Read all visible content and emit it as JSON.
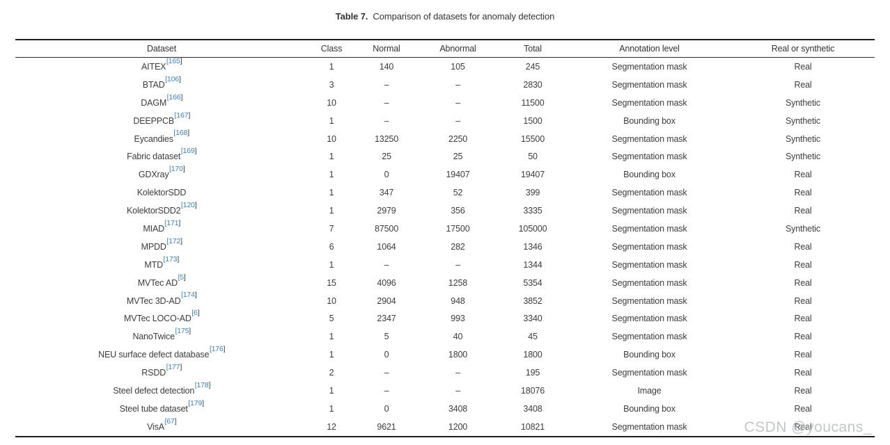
{
  "title": {
    "label": "Table 7.",
    "caption": "Comparison of datasets for anomaly detection"
  },
  "table": {
    "columns": [
      "Dataset",
      "Class",
      "Normal",
      "Abnormal",
      "Total",
      "Annotation level",
      "Real or synthetic"
    ],
    "rows": [
      {
        "dataset": "AITEX",
        "citation": "165",
        "class": "1",
        "normal": "140",
        "abnormal": "105",
        "total": "245",
        "annotation": "Segmentation mask",
        "real": "Real"
      },
      {
        "dataset": "BTAD",
        "citation": "106",
        "class": "3",
        "normal": "–",
        "abnormal": "–",
        "total": "2830",
        "annotation": "Segmentation mask",
        "real": "Real"
      },
      {
        "dataset": "DAGM",
        "citation": "166",
        "class": "10",
        "normal": "–",
        "abnormal": "–",
        "total": "11500",
        "annotation": "Segmentation mask",
        "real": "Synthetic"
      },
      {
        "dataset": "DEEPPCB",
        "citation": "167",
        "class": "1",
        "normal": "–",
        "abnormal": "–",
        "total": "1500",
        "annotation": "Bounding box",
        "real": "Synthetic"
      },
      {
        "dataset": "Eycandies",
        "citation": "168",
        "class": "10",
        "normal": "13250",
        "abnormal": "2250",
        "total": "15500",
        "annotation": "Segmentation mask",
        "real": "Synthetic"
      },
      {
        "dataset": "Fabric dataset",
        "citation": "169",
        "class": "1",
        "normal": "25",
        "abnormal": "25",
        "total": "50",
        "annotation": "Segmentation mask",
        "real": "Synthetic"
      },
      {
        "dataset": "GDXray",
        "citation": "170",
        "class": "1",
        "normal": "0",
        "abnormal": "19407",
        "total": "19407",
        "annotation": "Bounding box",
        "real": "Real"
      },
      {
        "dataset": "KolektorSDD",
        "citation": null,
        "class": "1",
        "normal": "347",
        "abnormal": "52",
        "total": "399",
        "annotation": "Segmentation mask",
        "real": "Real"
      },
      {
        "dataset": "KolektorSDD2",
        "citation": "120",
        "class": "1",
        "normal": "2979",
        "abnormal": "356",
        "total": "3335",
        "annotation": "Segmentation mask",
        "real": "Real"
      },
      {
        "dataset": "MIAD",
        "citation": "171",
        "class": "7",
        "normal": "87500",
        "abnormal": "17500",
        "total": "105000",
        "annotation": "Segmentation mask",
        "real": "Synthetic"
      },
      {
        "dataset": "MPDD",
        "citation": "172",
        "class": "6",
        "normal": "1064",
        "abnormal": "282",
        "total": "1346",
        "annotation": "Segmentation mask",
        "real": "Real"
      },
      {
        "dataset": "MTD",
        "citation": "173",
        "class": "1",
        "normal": "–",
        "abnormal": "–",
        "total": "1344",
        "annotation": "Segmentation mask",
        "real": "Real"
      },
      {
        "dataset": "MVTec AD",
        "citation": "5",
        "class": "15",
        "normal": "4096",
        "abnormal": "1258",
        "total": "5354",
        "annotation": "Segmentation mask",
        "real": "Real"
      },
      {
        "dataset": "MVTec 3D-AD",
        "citation": "174",
        "class": "10",
        "normal": "2904",
        "abnormal": "948",
        "total": "3852",
        "annotation": "Segmentation mask",
        "real": "Real"
      },
      {
        "dataset": "MVTec LOCO-AD",
        "citation": "6",
        "class": "5",
        "normal": "2347",
        "abnormal": "993",
        "total": "3340",
        "annotation": "Segmentation mask",
        "real": "Real"
      },
      {
        "dataset": "NanoTwice",
        "citation": "175",
        "class": "1",
        "normal": "5",
        "abnormal": "40",
        "total": "45",
        "annotation": "Segmentation mask",
        "real": "Real"
      },
      {
        "dataset": "NEU surface defect database",
        "citation": "176",
        "class": "1",
        "normal": "0",
        "abnormal": "1800",
        "total": "1800",
        "annotation": "Bounding box",
        "real": "Real"
      },
      {
        "dataset": "RSDD",
        "citation": "177",
        "class": "2",
        "normal": "–",
        "abnormal": "–",
        "total": "195",
        "annotation": "Segmentation mask",
        "real": "Real"
      },
      {
        "dataset": "Steel defect detection",
        "citation": "178",
        "class": "1",
        "normal": "–",
        "abnormal": "–",
        "total": "18076",
        "annotation": "Image",
        "real": "Real"
      },
      {
        "dataset": "Steel tube dataset",
        "citation": "179",
        "class": "1",
        "normal": "0",
        "abnormal": "3408",
        "total": "3408",
        "annotation": "Bounding box",
        "real": "Real"
      },
      {
        "dataset": "VisA",
        "citation": "67",
        "class": "12",
        "normal": "9621",
        "abnormal": "1200",
        "total": "10821",
        "annotation": "Segmentation mask",
        "real": "Real"
      }
    ]
  },
  "watermark": "CSDN @youcans_",
  "colors": {
    "citation_blue": "#3784c4",
    "body_text": "#3c3c3c",
    "rule_black": "#1d1d1d",
    "watermark_gray": "#b9bcbe"
  }
}
